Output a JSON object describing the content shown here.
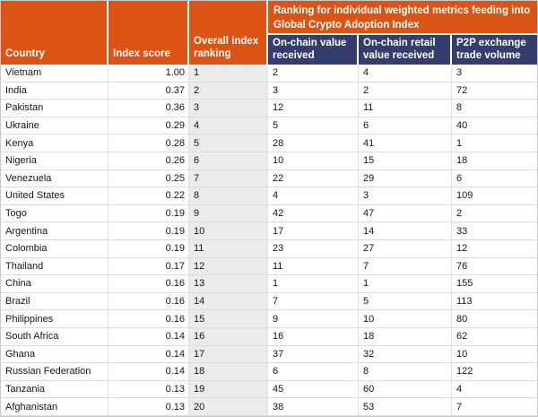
{
  "colors": {
    "orange": "#dc5415",
    "navy": "#353c6e",
    "gray_col": "#ebebeb",
    "row_border": "#dcdcdc",
    "vline": "#e2e2e2",
    "outer_border": "#c9c9c9"
  },
  "chart_data": {
    "type": "table",
    "header_group": "Ranking for individual weighted metrics feeding into Global Crypto Adoption Index",
    "columns": [
      "Country",
      "Index score",
      "Overall index ranking",
      "On-chain value received",
      "On-chain retail value received",
      "P2P exchange trade volume"
    ],
    "rows": [
      {
        "country": "Vietnam",
        "index_score": "1.00",
        "overall_rank": "1",
        "onchain_value": "2",
        "onchain_retail": "4",
        "p2p_volume": "3"
      },
      {
        "country": "India",
        "index_score": "0.37",
        "overall_rank": "2",
        "onchain_value": "3",
        "onchain_retail": "2",
        "p2p_volume": "72"
      },
      {
        "country": "Pakistan",
        "index_score": "0.36",
        "overall_rank": "3",
        "onchain_value": "12",
        "onchain_retail": "11",
        "p2p_volume": "8"
      },
      {
        "country": "Ukraine",
        "index_score": "0.29",
        "overall_rank": "4",
        "onchain_value": "5",
        "onchain_retail": "6",
        "p2p_volume": "40"
      },
      {
        "country": "Kenya",
        "index_score": "0.28",
        "overall_rank": "5",
        "onchain_value": "28",
        "onchain_retail": "41",
        "p2p_volume": "1"
      },
      {
        "country": "Nigeria",
        "index_score": "0.26",
        "overall_rank": "6",
        "onchain_value": "10",
        "onchain_retail": "15",
        "p2p_volume": "18"
      },
      {
        "country": "Venezuela",
        "index_score": "0.25",
        "overall_rank": "7",
        "onchain_value": "22",
        "onchain_retail": "29",
        "p2p_volume": "6"
      },
      {
        "country": "United States",
        "index_score": "0.22",
        "overall_rank": "8",
        "onchain_value": "4",
        "onchain_retail": "3",
        "p2p_volume": "109"
      },
      {
        "country": "Togo",
        "index_score": "0.19",
        "overall_rank": "9",
        "onchain_value": "42",
        "onchain_retail": "47",
        "p2p_volume": "2"
      },
      {
        "country": "Argentina",
        "index_score": "0.19",
        "overall_rank": "10",
        "onchain_value": "17",
        "onchain_retail": "14",
        "p2p_volume": "33"
      },
      {
        "country": "Colombia",
        "index_score": "0.19",
        "overall_rank": "11",
        "onchain_value": "23",
        "onchain_retail": "27",
        "p2p_volume": "12"
      },
      {
        "country": "Thailand",
        "index_score": "0.17",
        "overall_rank": "12",
        "onchain_value": "11",
        "onchain_retail": "7",
        "p2p_volume": "76"
      },
      {
        "country": "China",
        "index_score": "0.16",
        "overall_rank": "13",
        "onchain_value": "1",
        "onchain_retail": "1",
        "p2p_volume": "155"
      },
      {
        "country": "Brazil",
        "index_score": "0.16",
        "overall_rank": "14",
        "onchain_value": "7",
        "onchain_retail": "5",
        "p2p_volume": "113"
      },
      {
        "country": "Philippines",
        "index_score": "0.16",
        "overall_rank": "15",
        "onchain_value": "9",
        "onchain_retail": "10",
        "p2p_volume": "80"
      },
      {
        "country": "South Africa",
        "index_score": "0.14",
        "overall_rank": "16",
        "onchain_value": "16",
        "onchain_retail": "18",
        "p2p_volume": "62"
      },
      {
        "country": "Ghana",
        "index_score": "0.14",
        "overall_rank": "17",
        "onchain_value": "37",
        "onchain_retail": "32",
        "p2p_volume": "10"
      },
      {
        "country": "Russian Federation",
        "index_score": "0.14",
        "overall_rank": "18",
        "onchain_value": "6",
        "onchain_retail": "8",
        "p2p_volume": "122"
      },
      {
        "country": "Tanzania",
        "index_score": "0.13",
        "overall_rank": "19",
        "onchain_value": "45",
        "onchain_retail": "60",
        "p2p_volume": "4"
      },
      {
        "country": "Afghanistan",
        "index_score": "0.13",
        "overall_rank": "20",
        "onchain_value": "38",
        "onchain_retail": "53",
        "p2p_volume": "7"
      }
    ]
  }
}
